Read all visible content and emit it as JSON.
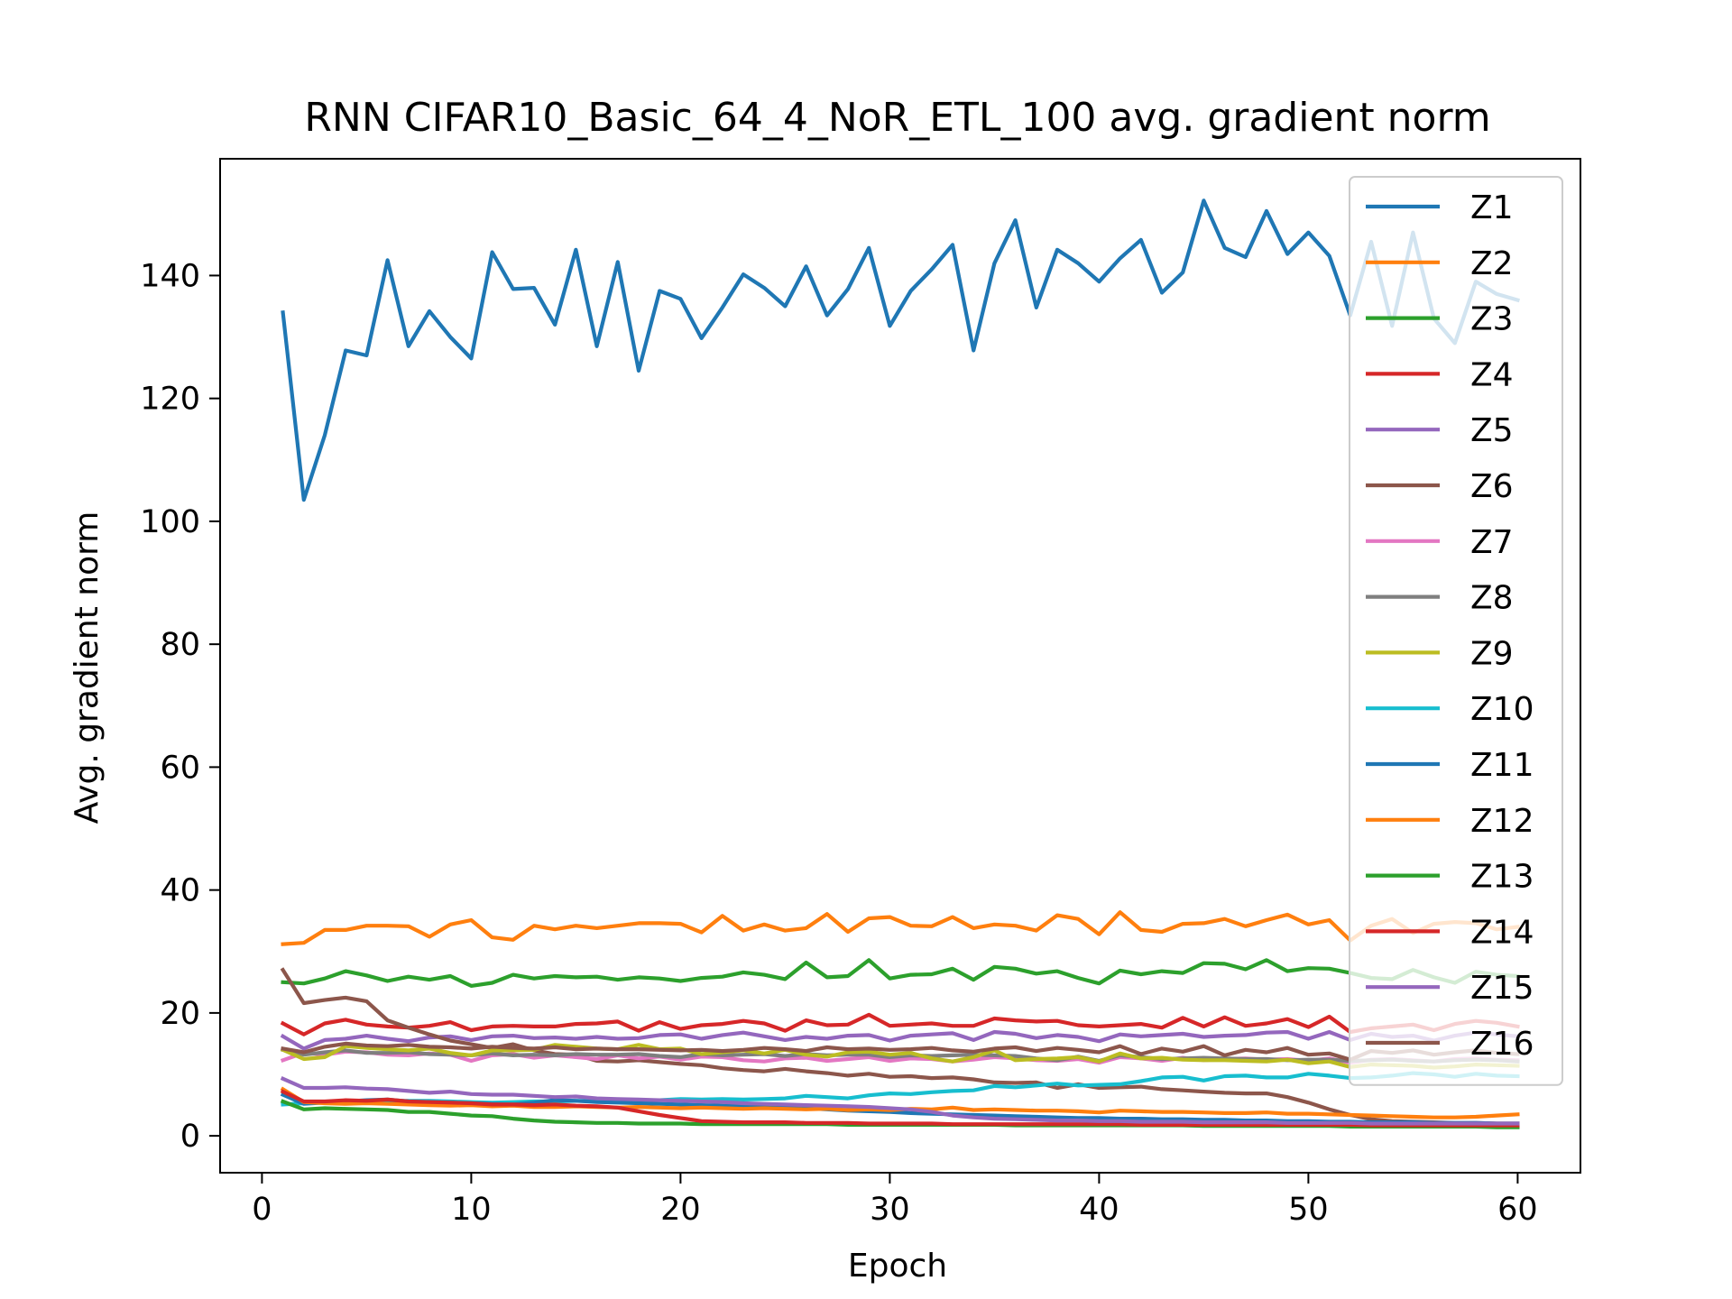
{
  "chart_data": {
    "type": "line",
    "title": "RNN CIFAR10_Basic_64_4_NoR_ETL_100 avg. gradient norm",
    "xlabel": "Epoch",
    "ylabel": "Avg. gradient norm",
    "xlim": [
      -2,
      63
    ],
    "ylim": [
      -6,
      159
    ],
    "xticks": [
      0,
      10,
      20,
      30,
      40,
      50,
      60
    ],
    "yticks": [
      0,
      20,
      40,
      60,
      80,
      100,
      120,
      140
    ],
    "legend": "upper-right",
    "grid": false,
    "x_start": 1,
    "series": [
      {
        "name": "Z1",
        "color": "#1f77b4",
        "values": [
          134,
          103.5,
          114,
          127.8,
          127,
          142.5,
          128.5,
          134.2,
          130,
          126.5,
          143.8,
          137.8,
          138,
          132,
          144.2,
          128.5,
          142.2,
          124.5,
          137.5,
          136.2,
          129.8,
          134.8,
          140.2,
          138,
          135,
          141.5,
          133.5,
          137.8,
          144.5,
          131.8,
          137.5,
          141,
          145,
          127.8,
          142,
          149,
          134.8,
          144.2,
          142,
          139,
          142.8,
          145.8,
          137.2,
          140.5,
          152.2,
          144.5,
          143,
          150.5,
          143.5,
          147,
          143.2,
          133.5,
          145.5,
          131.8,
          147,
          133,
          129,
          139,
          137,
          136
        ]
      },
      {
        "name": "Z2",
        "color": "#ff7f0e",
        "values": [
          31.2,
          31.4,
          33.5,
          33.5,
          34.2,
          34.2,
          34.1,
          32.4,
          34.4,
          35.1,
          32.3,
          31.9,
          34.2,
          33.6,
          34.2,
          33.8,
          34.2,
          34.6,
          34.6,
          34.5,
          33.1,
          35.8,
          33.4,
          34.4,
          33.4,
          33.8,
          36.1,
          33.2,
          35.4,
          35.6,
          34.2,
          34.1,
          35.6,
          33.8,
          34.4,
          34.2,
          33.4,
          35.9,
          35.3,
          32.8,
          36.4,
          33.5,
          33.2,
          34.5,
          34.6,
          35.3,
          34.1,
          35.1,
          36,
          34.4,
          35.1,
          31.8,
          34.2,
          35.3,
          33,
          34.5,
          34.8,
          34.6,
          33.6,
          34
        ]
      },
      {
        "name": "Z3",
        "color": "#2ca02c",
        "values": [
          25,
          24.8,
          25.6,
          26.8,
          26.1,
          25.2,
          25.9,
          25.4,
          26,
          24.4,
          24.9,
          26.2,
          25.6,
          26,
          25.8,
          25.9,
          25.4,
          25.8,
          25.6,
          25.2,
          25.7,
          25.9,
          26.6,
          26.2,
          25.5,
          28.2,
          25.8,
          26,
          28.6,
          25.6,
          26.2,
          26.3,
          27.2,
          25.4,
          27.5,
          27.2,
          26.4,
          26.8,
          25.7,
          24.8,
          26.9,
          26.3,
          26.8,
          26.5,
          28.1,
          28,
          27.1,
          28.6,
          26.8,
          27.3,
          27.2,
          26.5,
          25.7,
          25.5,
          27,
          25.8,
          24.9,
          26.7,
          26.2,
          26
        ]
      },
      {
        "name": "Z4",
        "color": "#d62728",
        "values": [
          18.3,
          16.5,
          18.3,
          18.9,
          18.1,
          17.8,
          17.6,
          17.9,
          18.5,
          17.2,
          17.8,
          17.9,
          17.8,
          17.8,
          18.2,
          18.3,
          18.6,
          17.1,
          18.5,
          17.4,
          18,
          18.2,
          18.7,
          18.3,
          17.1,
          18.8,
          18,
          18.1,
          19.7,
          17.9,
          18.1,
          18.3,
          17.9,
          17.9,
          19.1,
          18.8,
          18.6,
          18.7,
          18,
          17.8,
          18,
          18.2,
          17.6,
          19.2,
          17.8,
          19.3,
          17.9,
          18.3,
          19,
          17.7,
          19.4,
          16.9,
          17.5,
          17.8,
          18.1,
          17.2,
          18.2,
          18.7,
          18.4,
          17.8
        ]
      },
      {
        "name": "Z5",
        "color": "#9467bd",
        "values": [
          16.2,
          14.2,
          15.6,
          15.8,
          16.3,
          15.8,
          15.4,
          16,
          16.2,
          15.6,
          16.2,
          16.3,
          15.9,
          16,
          15.8,
          16.1,
          15.8,
          15.9,
          16.4,
          16.5,
          15.8,
          16.4,
          16.8,
          16.2,
          15.6,
          16.1,
          15.8,
          16.3,
          16.4,
          15.5,
          16.3,
          16.5,
          16.7,
          15.6,
          16.9,
          16.6,
          15.9,
          16.4,
          16.1,
          15.4,
          16.5,
          16.2,
          16.4,
          16.6,
          16.1,
          16.3,
          16.4,
          16.8,
          16.9,
          15.8,
          16.9,
          15.6,
          16.6,
          16.1,
          16.3,
          15.5,
          16.3,
          16.8,
          16.5,
          16.2
        ]
      },
      {
        "name": "Z6",
        "color": "#8c564b",
        "values": [
          27,
          21.6,
          22.1,
          22.5,
          21.9,
          18.8,
          17.6,
          16.5,
          15.5,
          14.9,
          14.3,
          14.9,
          13.9,
          13.3,
          13.2,
          12.2,
          12.1,
          12.3,
          12,
          11.7,
          11.5,
          11,
          10.7,
          10.5,
          10.9,
          10.5,
          10.2,
          9.8,
          10.1,
          9.6,
          9.7,
          9.4,
          9.5,
          9.2,
          8.7,
          8.6,
          8.7,
          7.8,
          8.4,
          7.8,
          7.9,
          8,
          7.6,
          7.4,
          7.2,
          7,
          6.9,
          6.9,
          6.3,
          5.4,
          4.3,
          3.4,
          2.7,
          2.4,
          2.3,
          2.2,
          2.1,
          2.1,
          2,
          2
        ]
      },
      {
        "name": "Z7",
        "color": "#e377c2",
        "values": [
          12.3,
          13.5,
          13.2,
          13.7,
          13.6,
          13.2,
          13.1,
          13.4,
          13.2,
          12.2,
          13.1,
          13.3,
          12.7,
          13.1,
          12.8,
          12.5,
          13.1,
          12.6,
          12.9,
          12.4,
          12.9,
          12.8,
          12.3,
          12.1,
          12.6,
          12.7,
          12.2,
          12.5,
          12.8,
          12.2,
          12.6,
          12.5,
          12.1,
          12.4,
          12.8,
          12.6,
          12.3,
          12.2,
          12.5,
          11.9,
          12.8,
          12.6,
          12.2,
          12.7,
          12.3,
          12.5,
          12.6,
          12.4,
          12.5,
          12.2,
          12.6,
          11.9,
          12.4,
          12.5,
          12.3,
          12.1,
          12.5,
          12.6,
          12.4,
          12.3
        ]
      },
      {
        "name": "Z8",
        "color": "#7f7f7f",
        "values": [
          14,
          13.2,
          13.6,
          13.9,
          13.5,
          13.5,
          13.6,
          13.3,
          13.2,
          13.1,
          13.4,
          13.1,
          13.2,
          13.1,
          13.3,
          13.2,
          13.2,
          13.3,
          13,
          12.8,
          13.3,
          13.1,
          13.2,
          13.3,
          13,
          13.3,
          13.1,
          13.2,
          13.2,
          12.8,
          13.1,
          13,
          13.1,
          13.2,
          13.1,
          13,
          12.6,
          12.3,
          12.9,
          12.2,
          13.1,
          12.8,
          12.5,
          12.6,
          12.7,
          12.6,
          12.5,
          12.5,
          12.3,
          12.4,
          12.4,
          12.2,
          12.3,
          12.4,
          12.2,
          12.1,
          12.3,
          12.4,
          12.3,
          12.1
        ]
      },
      {
        "name": "Z9",
        "color": "#bcbd22",
        "values": [
          14,
          12.5,
          12.8,
          14.6,
          14.3,
          14.1,
          13.9,
          14.2,
          13.5,
          13.1,
          13.9,
          13.9,
          14,
          14.8,
          14.5,
          14.2,
          14.1,
          14.8,
          14.1,
          14.2,
          13.3,
          13.6,
          13.9,
          13.4,
          14,
          13.2,
          12.9,
          13.6,
          13.7,
          13.2,
          13.5,
          12.6,
          12.1,
          12.8,
          13.9,
          12.3,
          12.5,
          12.6,
          12.8,
          12.1,
          13.4,
          12.6,
          12.7,
          12.4,
          12.3,
          12.3,
          12.2,
          12.1,
          12.4,
          11.8,
          12.1,
          11.2,
          11.6,
          11.5,
          11.4,
          11.1,
          11.3,
          11.6,
          11.5,
          11.4
        ]
      },
      {
        "name": "Z10",
        "color": "#17becf",
        "values": [
          5.1,
          5.3,
          5.5,
          5.6,
          5.7,
          5.7,
          5.7,
          5.7,
          5.6,
          5.5,
          5.4,
          5.5,
          5.6,
          5.6,
          5.7,
          5.7,
          5.8,
          5.7,
          5.8,
          6,
          5.9,
          6,
          5.9,
          6,
          6.1,
          6.5,
          6.3,
          6.1,
          6.6,
          6.9,
          6.8,
          7.1,
          7.3,
          7.4,
          8.1,
          7.9,
          8.2,
          8.5,
          8.2,
          8.3,
          8.4,
          8.9,
          9.5,
          9.6,
          9,
          9.7,
          9.8,
          9.5,
          9.5,
          10.1,
          9.8,
          9.4,
          9.5,
          9.8,
          10.2,
          10,
          9.6,
          10.1,
          9.8,
          9.7
        ]
      },
      {
        "name": "Z11",
        "color": "#1f77b4",
        "values": [
          6.7,
          5.2,
          5.4,
          5.6,
          5.8,
          5.9,
          5.6,
          5.5,
          5.4,
          5.3,
          5.2,
          5.1,
          5.4,
          5.8,
          5.7,
          5.5,
          5.4,
          5.3,
          5.2,
          5.1,
          5,
          4.9,
          4.8,
          4.7,
          4.6,
          4.5,
          4.3,
          4.1,
          4,
          3.9,
          3.7,
          3.6,
          3.5,
          3.4,
          3.3,
          3.2,
          3.1,
          3,
          2.9,
          2.9,
          2.8,
          2.8,
          2.7,
          2.7,
          2.6,
          2.6,
          2.5,
          2.5,
          2.4,
          2.4,
          2.3,
          2.3,
          2.2,
          2.2,
          2.2,
          2.1,
          2.1,
          2.1,
          2,
          2
        ]
      },
      {
        "name": "Z12",
        "color": "#ff7f0e",
        "values": [
          7.6,
          5.5,
          5.3,
          5.2,
          5.3,
          5.2,
          5.1,
          5,
          4.9,
          5,
          4.8,
          4.9,
          4.7,
          4.7,
          4.8,
          4.7,
          4.6,
          4.7,
          4.6,
          4.5,
          4.6,
          4.5,
          4.4,
          4.5,
          4.4,
          4.3,
          4.4,
          4.2,
          4.3,
          4.2,
          4.4,
          4.3,
          4.6,
          4.2,
          4.3,
          4.2,
          4.1,
          4.1,
          4,
          3.8,
          4.1,
          4,
          3.9,
          3.9,
          3.8,
          3.7,
          3.7,
          3.8,
          3.6,
          3.6,
          3.5,
          3.4,
          3.3,
          3.2,
          3.1,
          3,
          3,
          3.1,
          3.3,
          3.5
        ]
      },
      {
        "name": "Z13",
        "color": "#2ca02c",
        "values": [
          5.6,
          4.3,
          4.5,
          4.4,
          4.3,
          4.2,
          3.9,
          3.9,
          3.6,
          3.3,
          3.2,
          2.8,
          2.5,
          2.3,
          2.2,
          2.1,
          2.1,
          2,
          2,
          2,
          1.9,
          1.9,
          1.9,
          1.9,
          1.9,
          1.9,
          1.9,
          1.8,
          1.8,
          1.8,
          1.8,
          1.8,
          1.8,
          1.8,
          1.8,
          1.7,
          1.7,
          1.7,
          1.7,
          1.7,
          1.7,
          1.7,
          1.7,
          1.7,
          1.6,
          1.6,
          1.6,
          1.6,
          1.6,
          1.6,
          1.6,
          1.5,
          1.5,
          1.5,
          1.5,
          1.5,
          1.5,
          1.5,
          1.4,
          1.4
        ]
      },
      {
        "name": "Z14",
        "color": "#d62728",
        "values": [
          7.2,
          5.6,
          5.6,
          5.8,
          5.7,
          5.9,
          5.6,
          5.5,
          5.4,
          5.3,
          5.1,
          5.1,
          5,
          5.1,
          4.9,
          4.8,
          4.6,
          4,
          3.4,
          2.9,
          2.4,
          2.3,
          2.2,
          2.2,
          2.2,
          2.1,
          2.1,
          2.1,
          2,
          2,
          2,
          2,
          1.9,
          1.9,
          1.9,
          1.9,
          1.9,
          1.9,
          1.9,
          1.9,
          1.9,
          1.8,
          1.8,
          1.8,
          1.8,
          1.8,
          1.8,
          1.8,
          1.8,
          1.8,
          1.8,
          1.8,
          1.7,
          1.7,
          1.7,
          1.7,
          1.7,
          1.7,
          1.7,
          1.7
        ]
      },
      {
        "name": "Z15",
        "color": "#9467bd",
        "values": [
          9.3,
          7.8,
          7.8,
          7.9,
          7.7,
          7.6,
          7.3,
          7,
          7.2,
          6.8,
          6.7,
          6.7,
          6.5,
          6.3,
          6.4,
          6.1,
          6,
          5.9,
          5.8,
          5.7,
          5.6,
          5.5,
          5.3,
          5.2,
          5.1,
          5,
          4.9,
          4.8,
          4.7,
          4.5,
          4.3,
          3.9,
          3.3,
          3,
          2.8,
          2.7,
          2.6,
          2.5,
          2.5,
          2.4,
          2.4,
          2.3,
          2.3,
          2.3,
          2.2,
          2.2,
          2.2,
          2.2,
          2.1,
          2.1,
          2.1,
          2.1,
          2,
          2,
          2,
          2,
          2,
          2,
          2,
          2
        ]
      },
      {
        "name": "Z16",
        "color": "#8c564b",
        "values": [
          14.2,
          13.6,
          14.5,
          15,
          14.7,
          14.6,
          14.8,
          14.5,
          14.4,
          14.2,
          14.5,
          14.3,
          14.2,
          14.4,
          14.1,
          14.2,
          14.1,
          14.1,
          14,
          13.9,
          14,
          13.8,
          14,
          14.3,
          14.1,
          13.8,
          14.4,
          14.1,
          14.2,
          14,
          14.1,
          14.3,
          13.9,
          13.7,
          14.2,
          14.4,
          13.8,
          14.3,
          14,
          13.6,
          14.6,
          13.3,
          14.2,
          13.7,
          14.6,
          13.1,
          14,
          13.6,
          14.3,
          13.2,
          13.4,
          12.4,
          13.8,
          13.5,
          13.9,
          13.2,
          13.6,
          13.9,
          13.5,
          13.3
        ]
      }
    ]
  }
}
